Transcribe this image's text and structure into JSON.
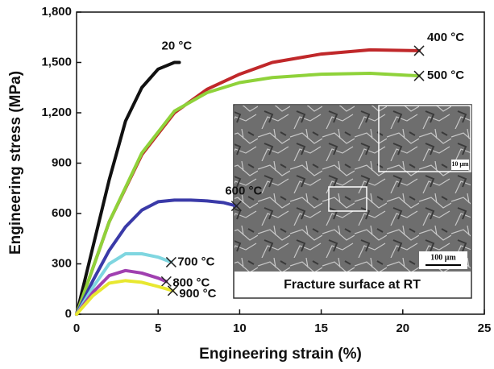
{
  "chart_data": {
    "type": "line",
    "xlabel": "Engineering strain (%)",
    "ylabel": "Engineering stress (MPa)",
    "xlim": [
      0,
      25
    ],
    "xticks": [
      0,
      5,
      10,
      15,
      20,
      25
    ],
    "ylim": [
      0,
      1800
    ],
    "yticks": [
      0,
      300,
      600,
      900,
      {
        "value": 1200,
        "label": "1,200"
      },
      {
        "value": 1500,
        "label": "1,500"
      },
      {
        "value": 1800,
        "label": "1,800"
      }
    ],
    "series": [
      {
        "name": "20 °C",
        "color": "#111111",
        "end_marker": false,
        "x": [
          0,
          1,
          2,
          3,
          4,
          5,
          6,
          6.3
        ],
        "values": [
          0,
          400,
          800,
          1150,
          1350,
          1460,
          1500,
          1500
        ]
      },
      {
        "name": "400 °C",
        "color": "#c0282a",
        "end_marker": true,
        "x": [
          0,
          2,
          4,
          6,
          8,
          10,
          12,
          15,
          18,
          21
        ],
        "values": [
          0,
          550,
          950,
          1200,
          1340,
          1430,
          1500,
          1550,
          1575,
          1570
        ]
      },
      {
        "name": "500 °C",
        "color": "#8fd23a",
        "end_marker": true,
        "x": [
          0,
          2,
          4,
          6,
          8,
          10,
          12,
          15,
          18,
          21
        ],
        "values": [
          0,
          550,
          960,
          1210,
          1320,
          1380,
          1410,
          1430,
          1435,
          1420
        ]
      },
      {
        "name": "600 °C",
        "color": "#3a3aa8",
        "end_marker": true,
        "x": [
          0,
          1,
          2,
          3,
          4,
          5,
          6,
          7,
          8,
          9,
          9.8
        ],
        "values": [
          0,
          200,
          380,
          520,
          620,
          670,
          680,
          680,
          675,
          665,
          645
        ]
      },
      {
        "name": "700 °C",
        "color": "#7fd6e0",
        "end_marker": true,
        "x": [
          0,
          1,
          2,
          3,
          4,
          5,
          5.8
        ],
        "values": [
          0,
          160,
          300,
          360,
          360,
          340,
          310
        ]
      },
      {
        "name": "800 °C",
        "color": "#a040b0",
        "end_marker": true,
        "x": [
          0,
          1,
          2,
          3,
          4,
          5,
          5.5
        ],
        "values": [
          0,
          130,
          230,
          260,
          245,
          215,
          195
        ]
      },
      {
        "name": "900 °C",
        "color": "#e8e830",
        "end_marker": true,
        "x": [
          0,
          1,
          2,
          3,
          4,
          5,
          5.9
        ],
        "values": [
          0,
          110,
          185,
          200,
          190,
          165,
          140
        ]
      }
    ],
    "inset": {
      "caption": "Fracture surface at RT",
      "scale_bars": [
        "10 μm",
        "100 μm"
      ]
    }
  }
}
